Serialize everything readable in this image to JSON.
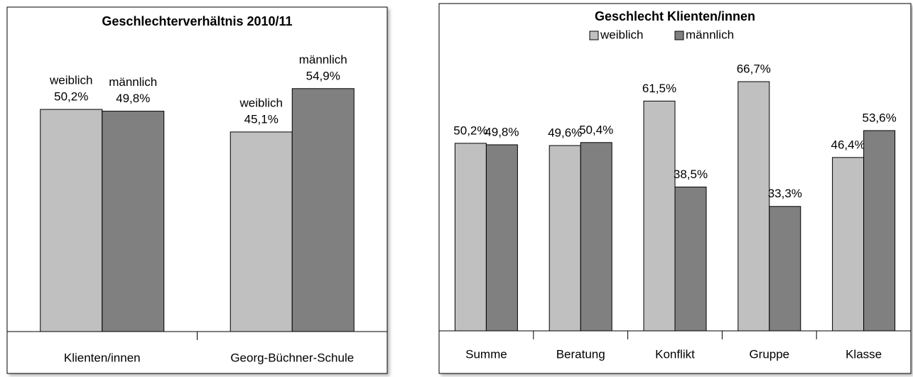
{
  "chart_data": [
    {
      "type": "bar",
      "title": "Geschlechterverhältnis 2010/11",
      "categories": [
        "Klienten/innen",
        "Georg-Büchner-Schule"
      ],
      "series": [
        {
          "name": "weiblich",
          "color": "#c0c0c0",
          "values": [
            50.2,
            45.1
          ],
          "value_labels": [
            "50,2%",
            "45,1%"
          ]
        },
        {
          "name": "männlich",
          "color": "#808080",
          "values": [
            49.8,
            54.9
          ],
          "value_labels": [
            "49,8%",
            "54,9%"
          ]
        }
      ],
      "ylim": [
        0,
        60
      ],
      "legend": false,
      "label_names": true
    },
    {
      "type": "bar",
      "title": "Geschlecht Klienten/innen",
      "categories": [
        "Summe",
        "Beratung",
        "Konflikt",
        "Gruppe",
        "Klasse"
      ],
      "series": [
        {
          "name": "weiblich",
          "color": "#c0c0c0",
          "values": [
            50.2,
            49.6,
            61.5,
            66.7,
            46.4
          ],
          "value_labels": [
            "50,2%",
            "49,6%",
            "61,5%",
            "66,7%",
            "46,4%"
          ]
        },
        {
          "name": "männlich",
          "color": "#808080",
          "values": [
            49.8,
            50.4,
            38.5,
            33.3,
            53.6
          ],
          "value_labels": [
            "49,8%",
            "50,4%",
            "38,5%",
            "33,3%",
            "53,6%"
          ]
        }
      ],
      "ylim": [
        0,
        80
      ],
      "legend": "top",
      "label_names": false
    }
  ]
}
